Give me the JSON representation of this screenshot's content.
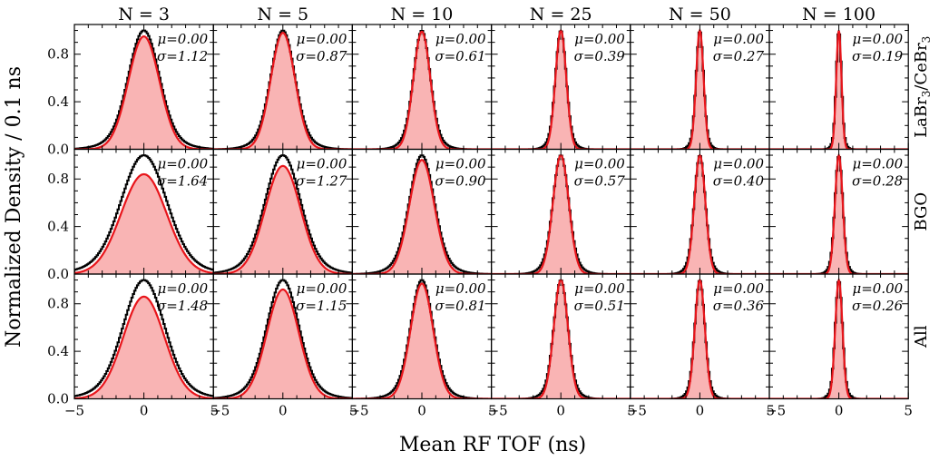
{
  "chart_data": {
    "type": "histogram-grid",
    "xlabel": "Mean RF TOF (ns)",
    "ylabel": "Normalized Density / 0.1 ns",
    "xlim": [
      -5,
      5
    ],
    "ylim": [
      0,
      1.05
    ],
    "x_ticks": [
      "−5",
      "0",
      "5"
    ],
    "y_ticks": [
      "0.0",
      "0.4",
      "0.8"
    ],
    "column_titles": [
      "N = 3",
      "N = 5",
      "N = 10",
      "N = 25",
      "N = 50",
      "N = 100"
    ],
    "row_labels": [
      "LaBr3/CeBr3",
      "BGO",
      "All"
    ],
    "row_label_parts": [
      {
        "pre": "LaBr",
        "s1": "3",
        "mid": "/CeBr",
        "s2": "3"
      },
      {
        "pre": "BGO",
        "s1": "",
        "mid": "",
        "s2": ""
      },
      {
        "pre": "All",
        "s1": "",
        "mid": "",
        "s2": ""
      }
    ],
    "mu_labels": [
      [
        "μ=0.00",
        "μ=0.00",
        "μ=0.00",
        "μ=0.00",
        "μ=0.00",
        "μ=0.00"
      ],
      [
        "μ=0.00",
        "μ=0.00",
        "μ=0.00",
        "μ=0.00",
        "μ=0.00",
        "μ=0.00"
      ],
      [
        "μ=0.00",
        "μ=0.00",
        "μ=0.00",
        "μ=0.00",
        "μ=0.00",
        "μ=0.00"
      ]
    ],
    "sigma_labels": [
      [
        "σ=1.12",
        "σ=0.87",
        "σ=0.61",
        "σ=0.39",
        "σ=0.27",
        "σ=0.19"
      ],
      [
        "σ=1.64",
        "σ=1.27",
        "σ=0.90",
        "σ=0.57",
        "σ=0.40",
        "σ=0.28"
      ],
      [
        "σ=1.48",
        "σ=1.15",
        "σ=0.81",
        "σ=0.51",
        "σ=0.36",
        "σ=0.26"
      ]
    ],
    "mu": [
      [
        0.0,
        0.0,
        0.0,
        0.0,
        0.0,
        0.0
      ],
      [
        0.0,
        0.0,
        0.0,
        0.0,
        0.0,
        0.0
      ],
      [
        0.0,
        0.0,
        0.0,
        0.0,
        0.0,
        0.0
      ]
    ],
    "sigma": [
      [
        1.12,
        0.87,
        0.61,
        0.39,
        0.27,
        0.19
      ],
      [
        1.64,
        1.27,
        0.9,
        0.57,
        0.4,
        0.28
      ],
      [
        1.48,
        1.15,
        0.81,
        0.51,
        0.36,
        0.26
      ]
    ],
    "fit_peak": [
      [
        0.95,
        0.98,
        0.99,
        1.0,
        1.0,
        1.0
      ],
      [
        0.84,
        0.91,
        0.96,
        1.0,
        1.0,
        1.0
      ],
      [
        0.86,
        0.92,
        0.97,
        1.0,
        1.0,
        1.0
      ]
    ],
    "hist_peak": [
      [
        1.0,
        1.0,
        1.0,
        1.0,
        1.0,
        1.0
      ],
      [
        1.0,
        1.0,
        1.0,
        1.0,
        1.0,
        1.0
      ],
      [
        1.0,
        1.0,
        1.0,
        1.0,
        1.0,
        1.0
      ]
    ],
    "series": [
      {
        "name": "",
        "kind": "histogram",
        "color": "#000000"
      },
      {
        "name": "",
        "kind": "gaussian fit (filled)",
        "color": "#e8151b",
        "fill": "#f9b4b4"
      }
    ]
  }
}
